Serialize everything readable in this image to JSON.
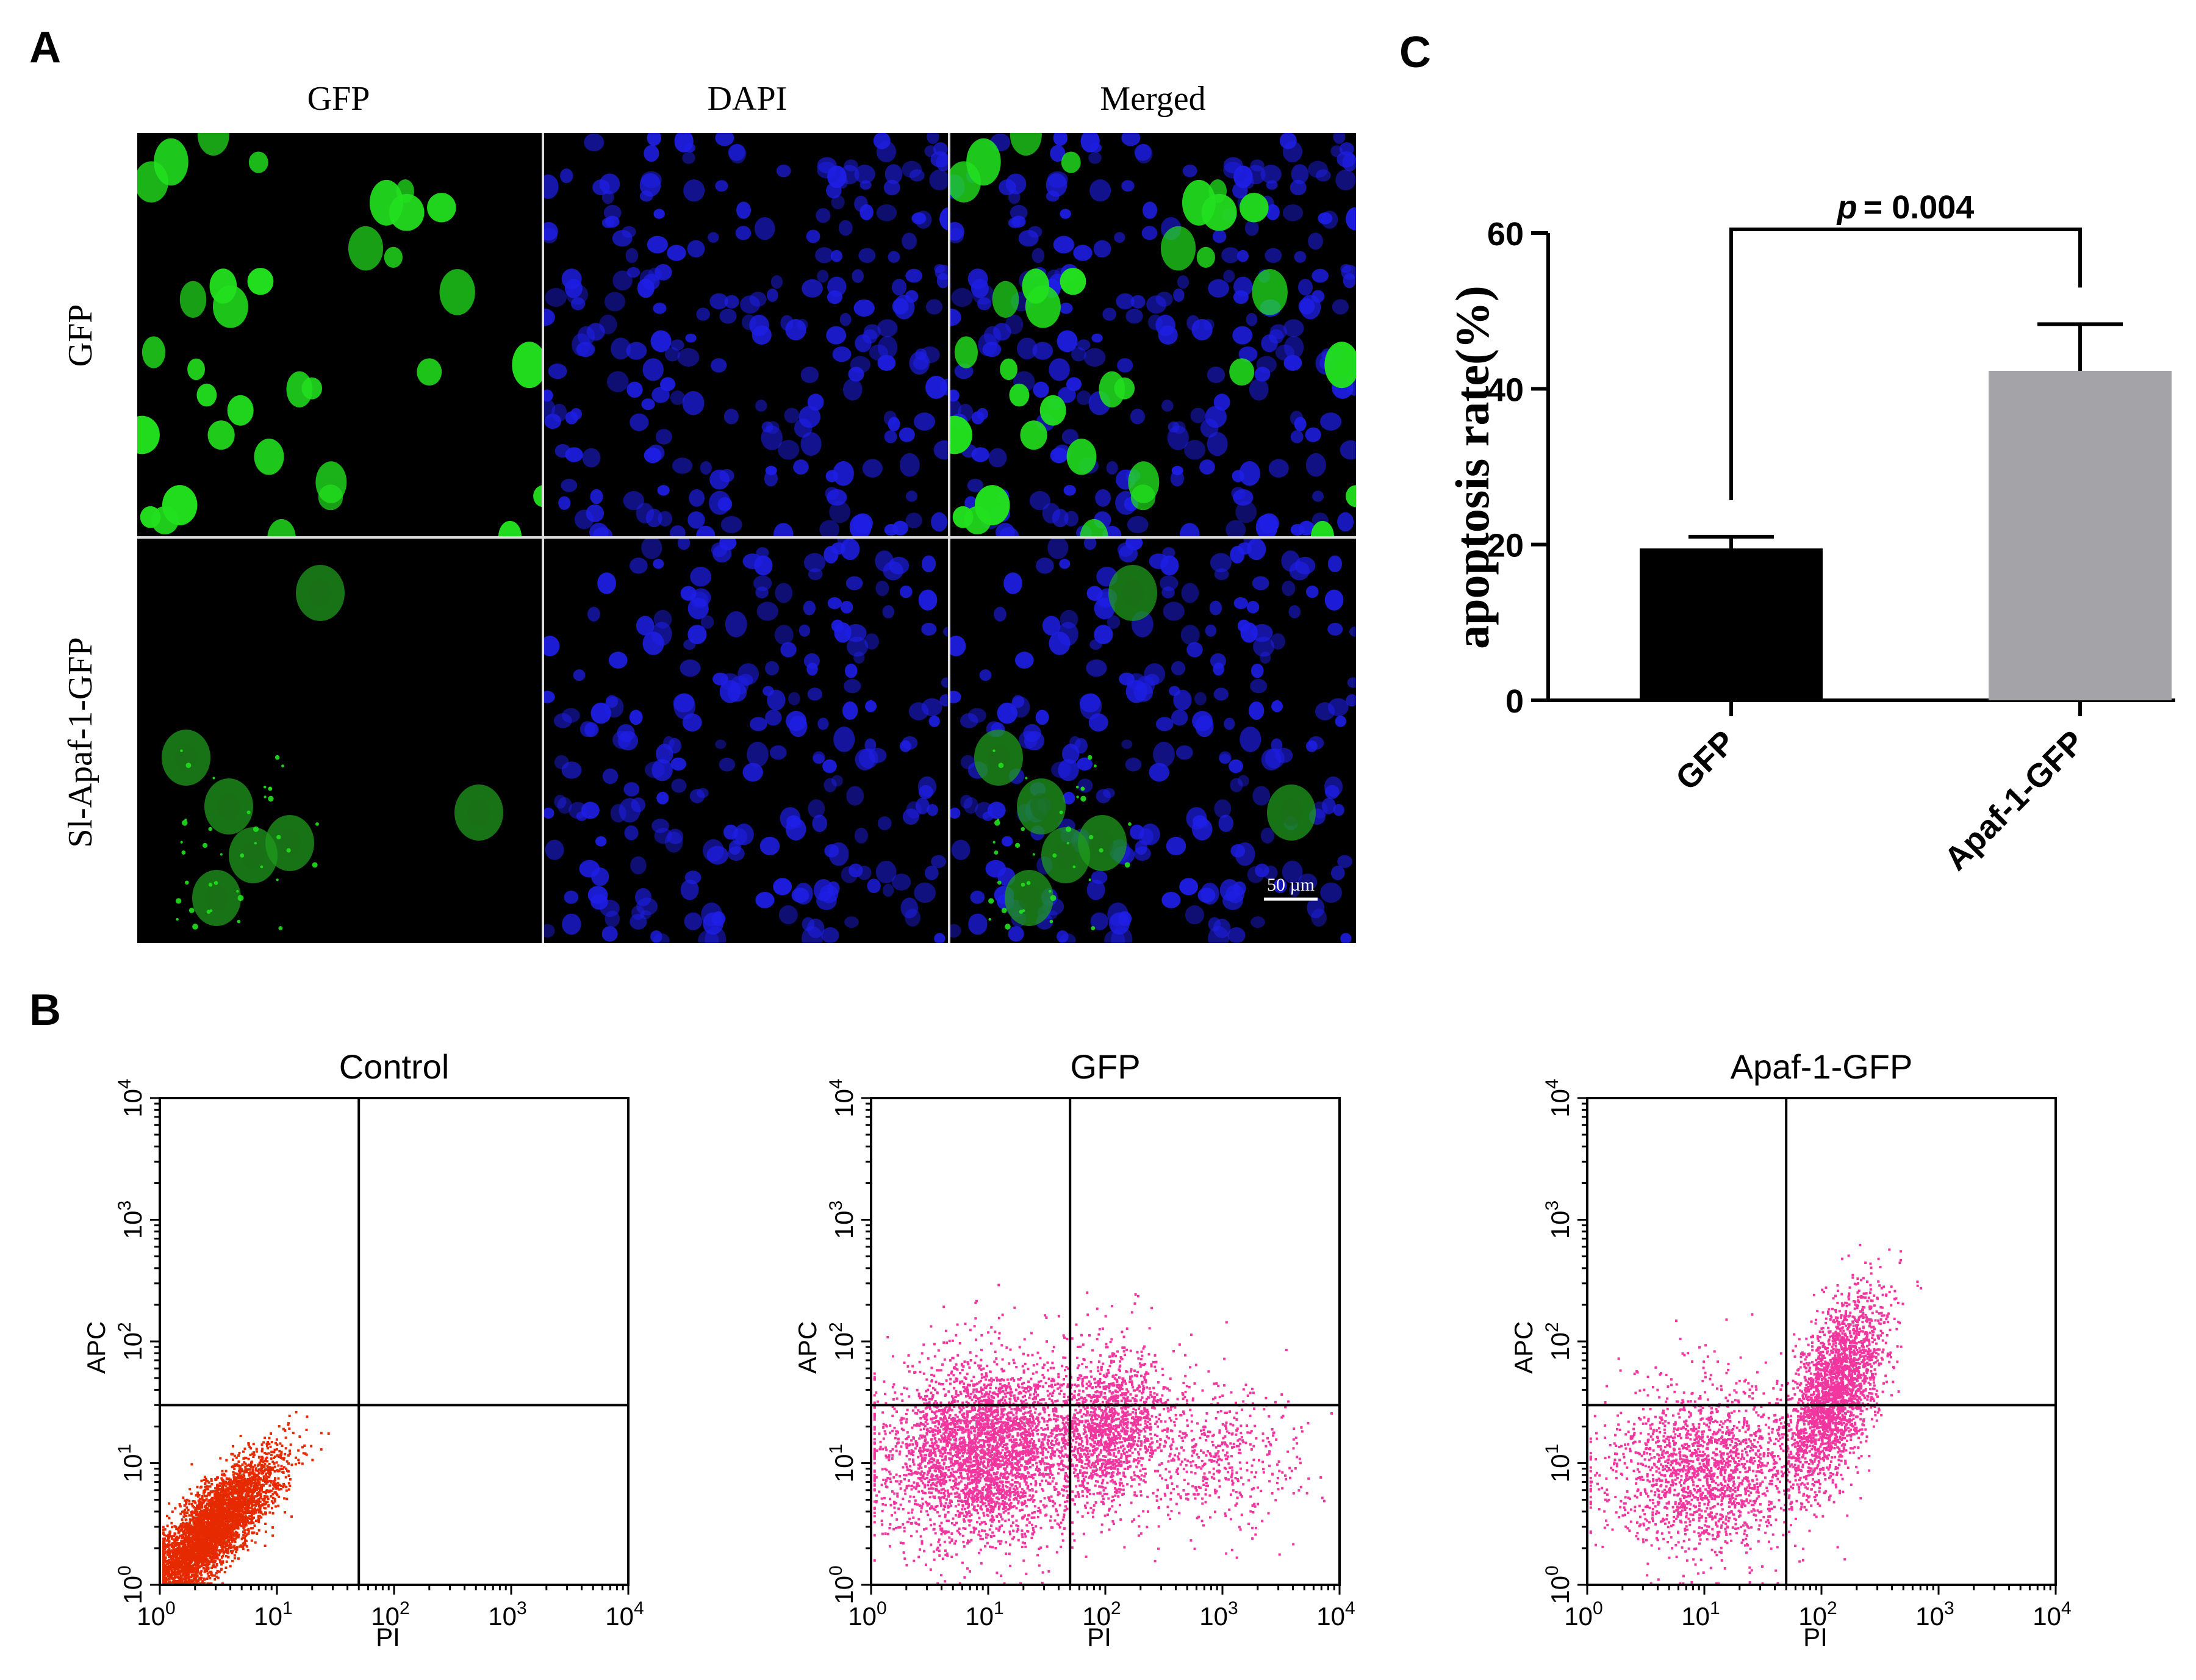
{
  "panel_labels": {
    "a": "A",
    "b": "B",
    "c": "C"
  },
  "micrograph": {
    "column_headers": [
      "GFP",
      "DAPI",
      "Merged"
    ],
    "row_labels": [
      "GFP",
      "Sl-Apaf-1-GFP"
    ],
    "scale_bar_label": "50 µm",
    "channel_colors": {
      "gfp": "#22e01e",
      "dapi": "#1e1ee6",
      "background": "#000000"
    }
  },
  "chart_data": [
    {
      "type": "bar",
      "panel": "C",
      "categories": [
        "GFP",
        "Apaf-1-GFP"
      ],
      "values": [
        19.5,
        42.3
      ],
      "errors": [
        1.5,
        6.0
      ],
      "colors": [
        "#000000",
        "#a3a3a8"
      ],
      "ylabel": "apoptosis rate(%)",
      "ylim": [
        0,
        60
      ],
      "yticks": [
        0,
        20,
        40,
        60
      ],
      "significance": {
        "p_label": "p",
        "p_value": "= 0.004"
      },
      "grid": false
    },
    {
      "type": "scatter",
      "panel": "B",
      "plots": [
        {
          "title": "Control",
          "color": "#e62a00"
        },
        {
          "title": "GFP",
          "color": "#f2369f"
        },
        {
          "title": "Apaf-1-GFP",
          "color": "#f2369f"
        }
      ],
      "xlabel": "PI",
      "ylabel": "APC",
      "x_scale": "log",
      "y_scale": "log",
      "xlim": [
        1,
        10000
      ],
      "ylim": [
        1,
        10000
      ],
      "tick_base": "10",
      "tick_exponents": [
        "0",
        "1",
        "2",
        "3",
        "4"
      ],
      "quadrant_gates": {
        "x": 50,
        "y": 30
      }
    }
  ]
}
